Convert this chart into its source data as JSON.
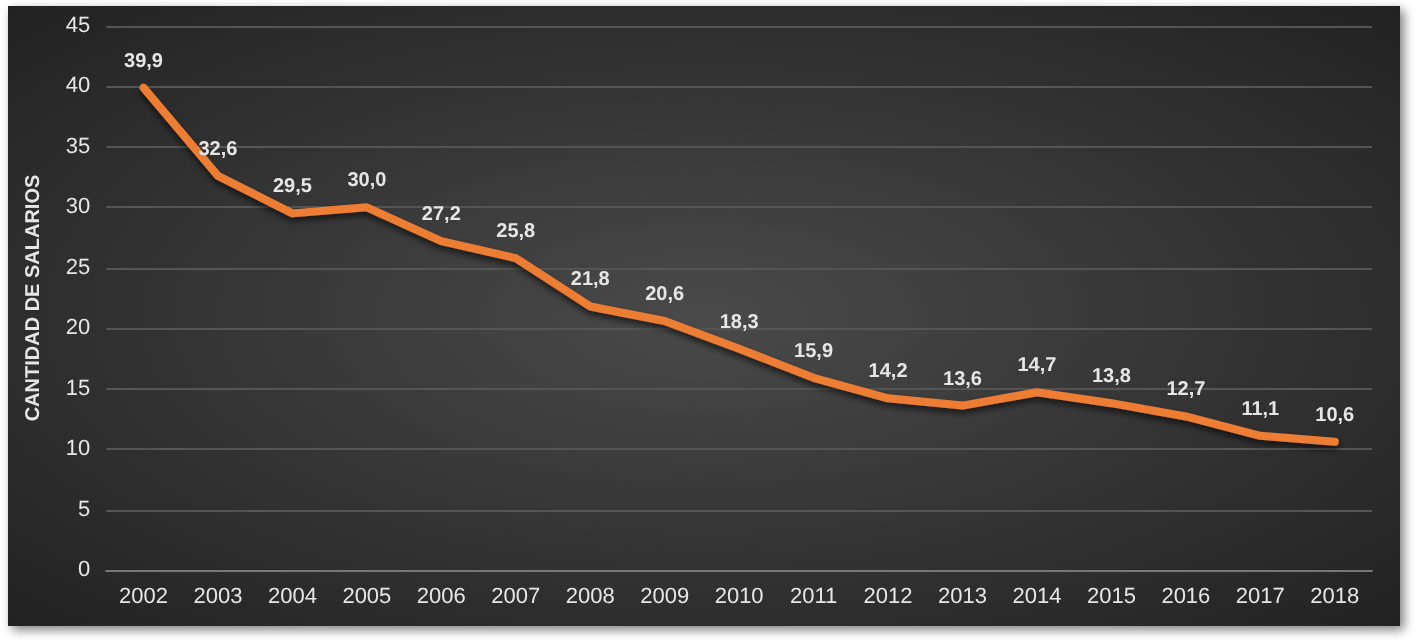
{
  "chart_data": {
    "type": "line",
    "ylabel": "CANTIDAD DE SALARIOS",
    "categories": [
      "2002",
      "2003",
      "2004",
      "2005",
      "2006",
      "2007",
      "2008",
      "2009",
      "2010",
      "2011",
      "2012",
      "2013",
      "2014",
      "2015",
      "2016",
      "2017",
      "2018"
    ],
    "values": [
      39.9,
      32.6,
      29.5,
      30.0,
      27.2,
      25.8,
      21.8,
      20.6,
      18.3,
      15.9,
      14.2,
      13.6,
      14.7,
      13.8,
      12.7,
      11.1,
      10.6
    ],
    "value_labels": [
      "39,9",
      "32,6",
      "29,5",
      "30,0",
      "27,2",
      "25,8",
      "21,8",
      "20,6",
      "18,3",
      "15,9",
      "14,2",
      "13,6",
      "14,7",
      "13,8",
      "12,7",
      "11,1",
      "10,6"
    ],
    "color": "#ed7d31",
    "ylim": [
      0,
      45
    ],
    "yticks": [
      0,
      5,
      10,
      15,
      20,
      25,
      30,
      35,
      40,
      45
    ],
    "grid": "y",
    "marker": "none",
    "line_style": "solid"
  }
}
